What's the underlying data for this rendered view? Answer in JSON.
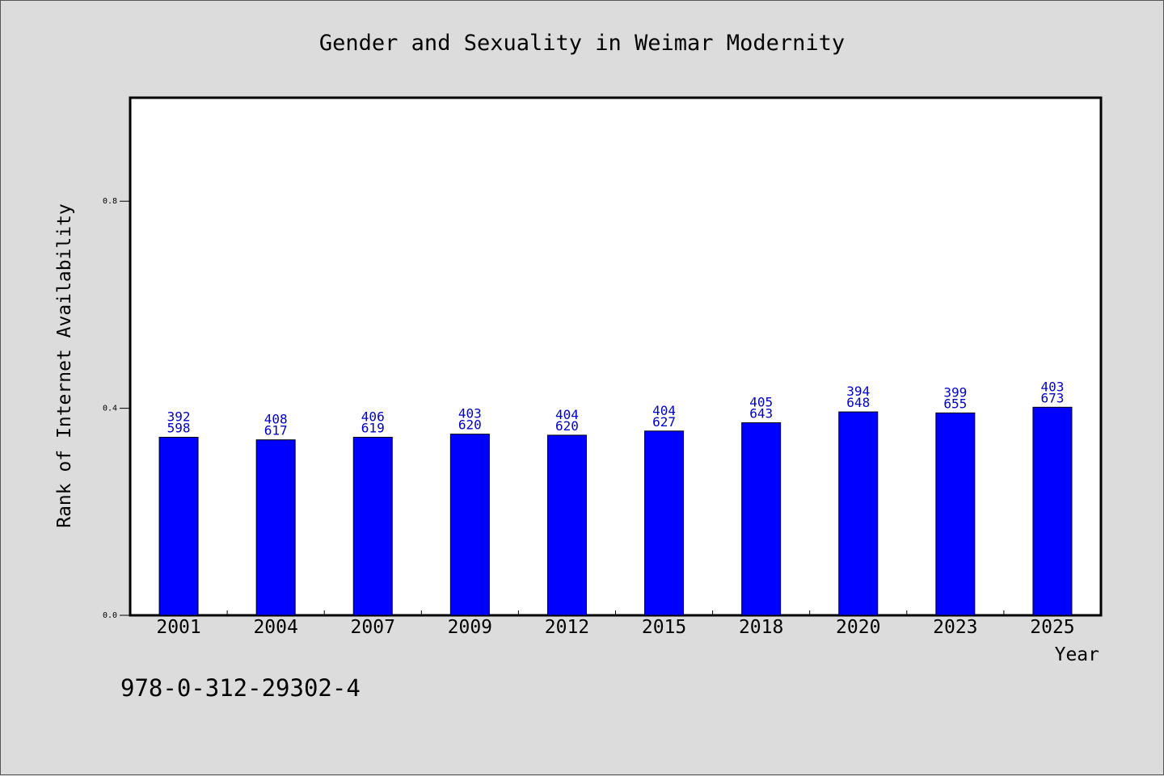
{
  "chart_data": {
    "type": "bar",
    "title": "Gender and Sexuality in Weimar Modernity",
    "xlabel": "Year",
    "ylabel": "Rank of Internet Availability",
    "categories": [
      "2001",
      "2004",
      "2007",
      "2009",
      "2012",
      "2015",
      "2018",
      "2020",
      "2023",
      "2025"
    ],
    "values": [
      0.344,
      0.339,
      0.344,
      0.35,
      0.348,
      0.356,
      0.372,
      0.393,
      0.391,
      0.402
    ],
    "label_top": [
      "392",
      "408",
      "406",
      "403",
      "404",
      "404",
      "405",
      "394",
      "399",
      "403"
    ],
    "label_bottom": [
      "598",
      "617",
      "619",
      "620",
      "620",
      "627",
      "643",
      "648",
      "655",
      "673"
    ],
    "ylim": [
      0.0,
      1.0
    ],
    "yticks": [
      "0.0",
      "0.4",
      "0.8"
    ],
    "ytick_values": [
      0.0,
      0.4,
      0.8
    ],
    "grid": false,
    "colors": {
      "bar": "#0000ff",
      "bar_label": "#0000cc",
      "plot_bg": "#ffffff",
      "figure_bg": "#dcdcdc"
    }
  },
  "footer_code": "978-0-312-29302-4"
}
